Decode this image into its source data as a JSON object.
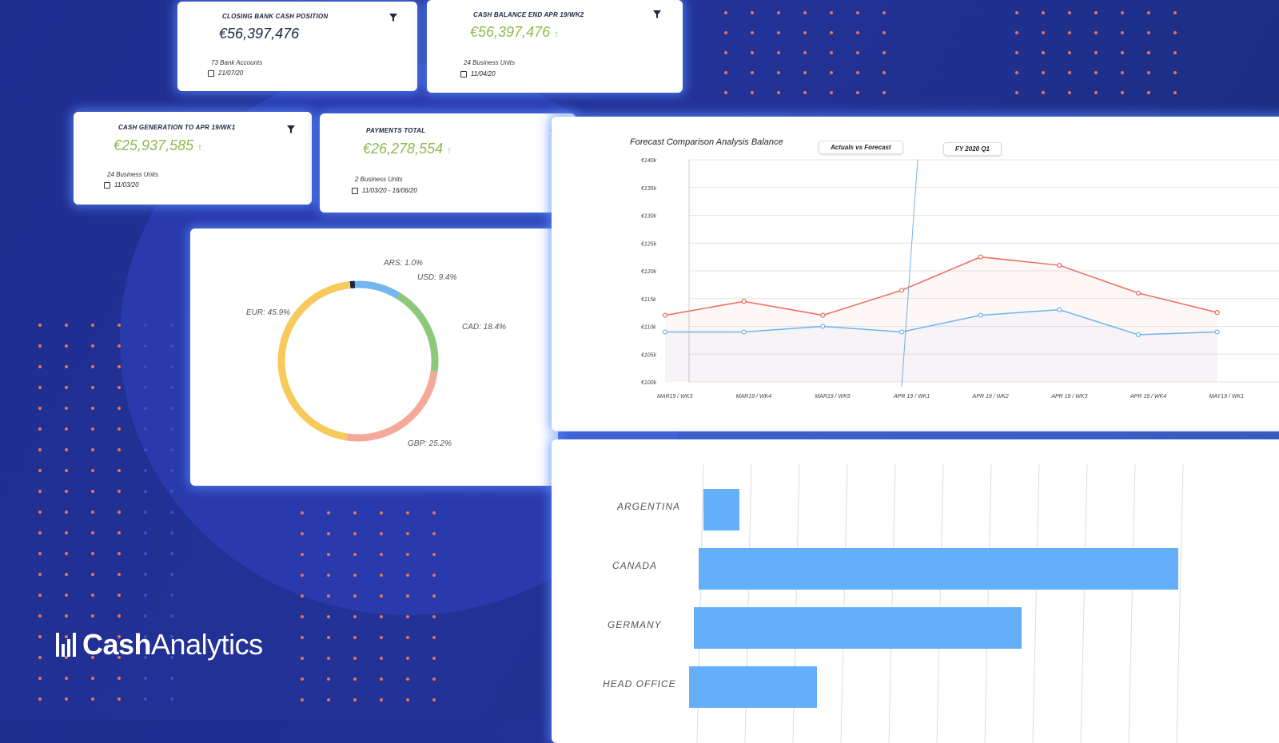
{
  "kpis": [
    {
      "title": "CLOSING BANK CASH POSITION",
      "value": "€56,397,476",
      "sub": "73 Bank Accounts",
      "date": "21/07/20"
    },
    {
      "title": "CASH BALANCE END APR 19/WK2",
      "value": "€56,397,476",
      "sub": "24 Business Units",
      "date": "11/04/20"
    },
    {
      "title": "CASH GENERATION TO  APR 19/WK1",
      "value": "€25,937,585",
      "sub": "24 Business Units",
      "date": "11/03/20"
    },
    {
      "title": "PAYMENTS TOTAL",
      "value": "€26,278,554",
      "sub": "2 Business Units",
      "date": "11/03/20 -  16/06/20"
    }
  ],
  "icons": {
    "filter": "filter-icon",
    "calendar": "calendar-icon",
    "trend_up": "arrow-up-icon"
  },
  "colors": {
    "positive": "#8dbb4f",
    "forecast": "#ee6b5a",
    "actual": "#6eb4f0",
    "bar": "#64affa"
  },
  "donut": {
    "segments": [
      {
        "label": "ARS: 1.0%",
        "value": 1.0,
        "color": "#1b2440"
      },
      {
        "label": "USD: 9.4%",
        "value": 9.4,
        "color": "#74b6ee"
      },
      {
        "label": "CAD: 18.4%",
        "value": 18.4,
        "color": "#8cc97a"
      },
      {
        "label": "GBP: 25.2%",
        "value": 25.2,
        "color": "#f5a999"
      },
      {
        "label": "EUR: 45.9%",
        "value": 45.9,
        "color": "#f8c95b"
      }
    ]
  },
  "forecast_chart": {
    "title": "Forecast Comparison Analysis Balance",
    "filter_pill": "Actuals vs Forecast",
    "period_pill": "FY 2020 Q1"
  },
  "bar_chart": {
    "categories": [
      "ARGENTINA",
      "CANADA",
      "GERMANY",
      "HEAD OFFICE"
    ]
  },
  "chart_data": [
    {
      "type": "pie",
      "categories": [
        "ARS",
        "USD",
        "CAD",
        "GBP",
        "EUR"
      ],
      "values": [
        1.0,
        9.4,
        18.4,
        25.2,
        45.9
      ]
    },
    {
      "type": "line",
      "title": "Forecast Comparison Analysis Balance",
      "x": [
        "MAR19 / WK3",
        "MAR19 / WK4",
        "MAR19 / WK5",
        "APR 19 / WK1",
        "APR 19 / WK2",
        "APR 19 / WK3",
        "APR 19 / WK4",
        "MAY19 / WK1"
      ],
      "yticks": [
        "€140k",
        "€135k",
        "€130k",
        "€125k",
        "€120k",
        "€115k",
        "€110k",
        "€105k",
        "€100k"
      ],
      "ylim": [
        100000,
        140000
      ],
      "series": [
        {
          "values": [
            112000,
            114500,
            112000,
            116500,
            122500,
            121000,
            116000,
            112500
          ]
        },
        {
          "values": [
            109000,
            109000,
            110000,
            109000,
            112000,
            113000,
            108500,
            109000
          ]
        }
      ]
    },
    {
      "type": "bar",
      "categories": [
        "ARGENTINA",
        "CANADA",
        "GERMANY",
        "HEAD OFFICE"
      ],
      "values": [
        45,
        600,
        410,
        160
      ]
    }
  ],
  "logo": {
    "bold": "Cash",
    "light": "Analytics"
  }
}
